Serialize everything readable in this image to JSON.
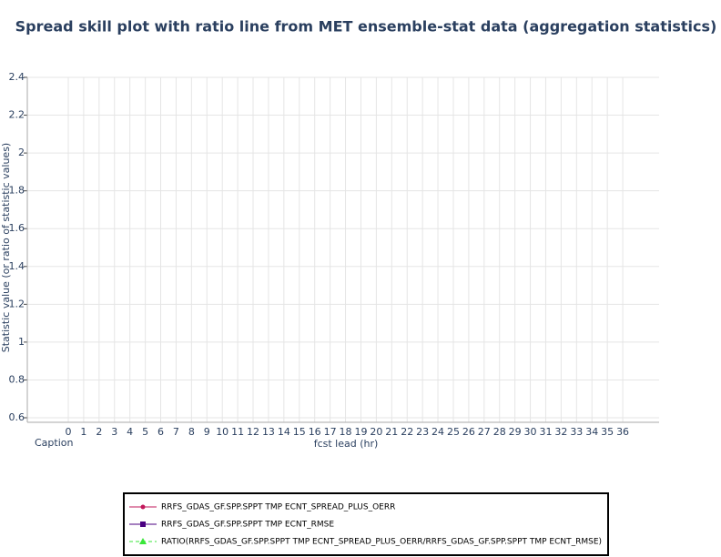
{
  "chart_data": {
    "type": "line",
    "title": "Spread skill plot with ratio line from MET ensemble-stat data (aggregation statistics)",
    "xlabel": "fcst lead (hr)",
    "ylabel": "Statistic value (or ratio of statistic values)",
    "caption": "Caption",
    "xlim": [
      -2.66,
      38.36
    ],
    "xticks": [
      0,
      1,
      2,
      3,
      4,
      5,
      6,
      7,
      8,
      9,
      10,
      11,
      12,
      13,
      14,
      15,
      16,
      17,
      18,
      19,
      20,
      21,
      22,
      23,
      24,
      25,
      26,
      27,
      28,
      29,
      30,
      31,
      32,
      33,
      34,
      35,
      36
    ],
    "ylim": [
      0.576,
      2.4
    ],
    "yticks": [
      0.6,
      0.8,
      1,
      1.2,
      1.4,
      1.6,
      1.8,
      2,
      2.2,
      2.4
    ],
    "grid": true,
    "legend": "bottom",
    "series": [
      {
        "name": "RRFS_GDAS_GF.SPP.SPPT TMP ECNT_SPREAD_PLUS_OERR",
        "color": "#c2185b",
        "marker": "circle",
        "dash": "solid"
      },
      {
        "name": "RRFS_GDAS_GF.SPP.SPPT TMP ECNT_RMSE",
        "color": "#4b0082",
        "marker": "square",
        "dash": "solid"
      },
      {
        "name": "RATIO(RRFS_GDAS_GF.SPP.SPPT TMP ECNT_SPREAD_PLUS_OERR/RRFS_GDAS_GF.SPP.SPPT TMP ECNT_RMSE)",
        "color": "#39e639",
        "marker": "triangle",
        "dash": "dash"
      }
    ]
  }
}
